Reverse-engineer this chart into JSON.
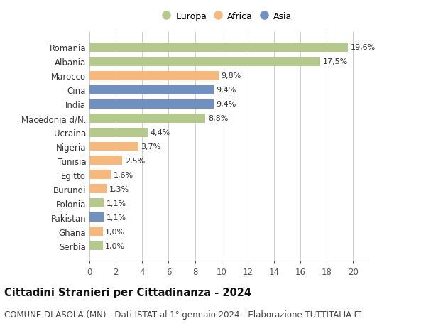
{
  "categories": [
    "Serbia",
    "Ghana",
    "Pakistan",
    "Polonia",
    "Burundi",
    "Egitto",
    "Tunisia",
    "Nigeria",
    "Ucraina",
    "Macedonia d/N.",
    "India",
    "Cina",
    "Marocco",
    "Albania",
    "Romania"
  ],
  "values": [
    1.0,
    1.0,
    1.1,
    1.1,
    1.3,
    1.6,
    2.5,
    3.7,
    4.4,
    8.8,
    9.4,
    9.4,
    9.8,
    17.5,
    19.6
  ],
  "labels": [
    "1,0%",
    "1,0%",
    "1,1%",
    "1,1%",
    "1,3%",
    "1,6%",
    "2,5%",
    "3,7%",
    "4,4%",
    "8,8%",
    "9,4%",
    "9,4%",
    "9,8%",
    "17,5%",
    "19,6%"
  ],
  "continent": [
    "Europa",
    "Africa",
    "Asia",
    "Europa",
    "Africa",
    "Africa",
    "Africa",
    "Africa",
    "Europa",
    "Europa",
    "Asia",
    "Asia",
    "Africa",
    "Europa",
    "Europa"
  ],
  "colors": {
    "Europa": "#b5c98e",
    "Africa": "#f5b97f",
    "Asia": "#7090bf"
  },
  "legend_items": [
    "Europa",
    "Africa",
    "Asia"
  ],
  "legend_colors": [
    "#b5c98e",
    "#f5b97f",
    "#7090bf"
  ],
  "xlim": [
    0,
    21
  ],
  "xticks": [
    0,
    2,
    4,
    6,
    8,
    10,
    12,
    14,
    16,
    18,
    20
  ],
  "title": "Cittadini Stranieri per Cittadinanza - 2024",
  "subtitle": "COMUNE DI ASOLA (MN) - Dati ISTAT al 1° gennaio 2024 - Elaborazione TUTTITALIA.IT",
  "title_fontsize": 10.5,
  "subtitle_fontsize": 8.5,
  "label_fontsize": 8,
  "tick_fontsize": 8.5,
  "bg_color": "#ffffff",
  "grid_color": "#cccccc",
  "bar_height": 0.65
}
